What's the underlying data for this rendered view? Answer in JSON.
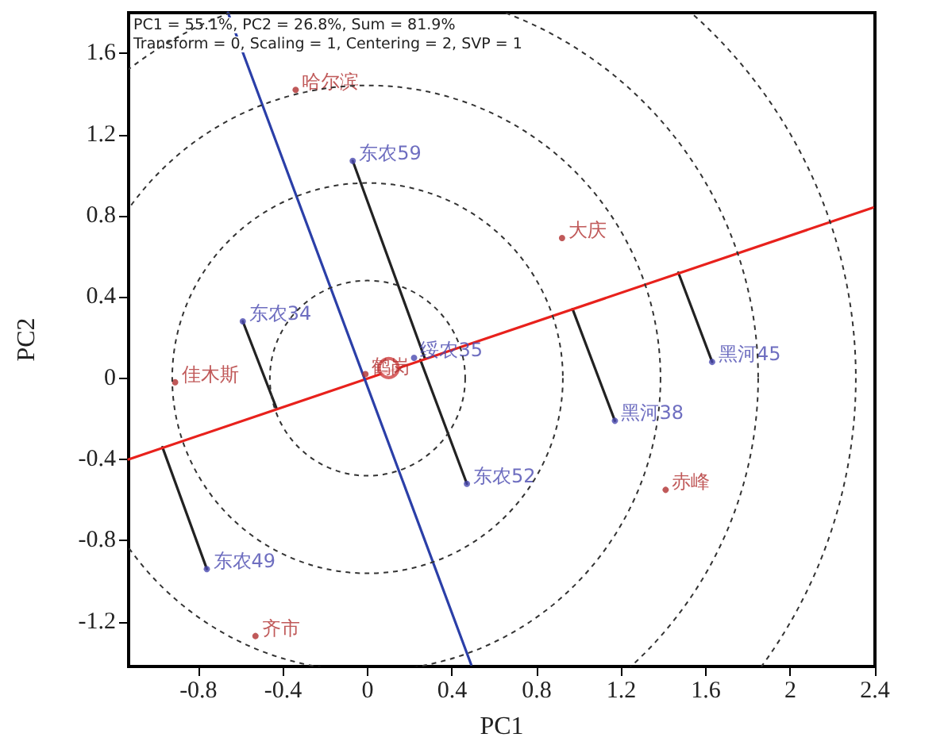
{
  "chart_data": {
    "type": "scatter",
    "xlabel": "PC1",
    "ylabel": "PC2",
    "annotations": [
      "PC1 = 55.1%, PC2 = 26.8%, Sum = 81.9%",
      "Transform = 0, Scaling = 1, Centering = 2, SVP = 1"
    ],
    "xlim": [
      -1.13,
      2.4
    ],
    "ylim": [
      -1.42,
      1.8
    ],
    "xticks": [
      -0.8,
      -0.4,
      0,
      0.4,
      0.8,
      1.2,
      1.6,
      2.0,
      2.4
    ],
    "yticks": [
      -1.2,
      -0.8,
      -0.4,
      0,
      0.4,
      0.8,
      1.2,
      1.6
    ],
    "grid": false,
    "series": [
      {
        "type": "line",
        "color": "#222222",
        "line_style": "solid",
        "marker": "none",
        "x": [
          -0.07,
          0.27
        ],
        "values": [
          1.07,
          0.1
        ]
      },
      {
        "type": "line",
        "color": "#222222",
        "line_style": "solid",
        "marker": "none",
        "x": [
          -0.59,
          -0.43
        ],
        "values": [
          0.28,
          -0.15
        ]
      },
      {
        "type": "line",
        "color": "#222222",
        "line_style": "solid",
        "marker": "none",
        "x": [
          0.47,
          0.25
        ],
        "values": [
          -0.52,
          0.09
        ]
      },
      {
        "type": "line",
        "color": "#222222",
        "line_style": "solid",
        "marker": "none",
        "x": [
          -0.76,
          -0.97
        ],
        "values": [
          -0.94,
          -0.34
        ]
      },
      {
        "type": "line",
        "color": "#222222",
        "line_style": "solid",
        "marker": "none",
        "x": [
          1.17,
          0.97
        ],
        "values": [
          -0.21,
          0.34
        ]
      },
      {
        "type": "line",
        "color": "#222222",
        "line_style": "solid",
        "marker": "none",
        "x": [
          1.63,
          1.47
        ],
        "values": [
          0.08,
          0.52
        ]
      },
      {
        "type": "line",
        "color": "#e8211c",
        "line_style": "solid",
        "marker": "none",
        "x": [
          -1.13,
          2.39
        ],
        "values": [
          -0.4,
          0.84
        ]
      },
      {
        "type": "line",
        "color": "#2b3fa8",
        "line_style": "solid",
        "marker": "none",
        "x": [
          -0.66,
          0.49
        ],
        "values": [
          1.8,
          -1.41
        ]
      },
      {
        "color": "#d04040",
        "marker": "circle",
        "x": [
          0.1
        ],
        "values": [
          0.05
        ]
      },
      {
        "color": "#4a4ab0",
        "marker": "circle",
        "x": [
          -0.07,
          -0.59,
          0.22,
          0.47,
          -0.76,
          1.17,
          1.63
        ],
        "values": [
          1.07,
          0.28,
          0.1,
          -0.52,
          -0.94,
          -0.21,
          0.08
        ],
        "value_labels": [
          "东农59",
          "东农34",
          "绥农35",
          "东农52",
          "东农49",
          "黑河38",
          "黑河45"
        ]
      },
      {
        "color": "#b03030",
        "marker": "circle",
        "x": [
          -0.34,
          0.92,
          -0.91,
          1.41,
          -0.53,
          -0.01
        ],
        "values": [
          1.42,
          0.69,
          -0.02,
          -0.55,
          -1.27,
          0.02
        ],
        "value_labels": [
          "哈尔滨",
          "大庆",
          "佳木斯",
          "赤峰",
          "齐市",
          "鹤岗"
        ]
      }
    ]
  }
}
